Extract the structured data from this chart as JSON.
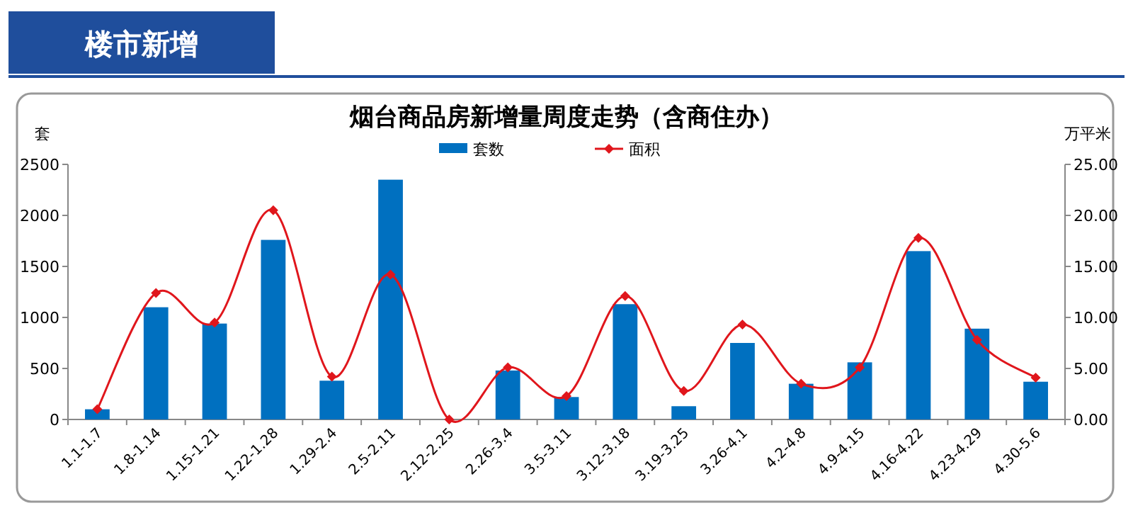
{
  "chart_data": {
    "type": "bar",
    "title": "烟台商品房新增量周度走势（含商住办）",
    "ylabel": "套",
    "y2label": "万平米",
    "annotations": [
      "楼市新增"
    ],
    "categories": [
      "1.1-1.7",
      "1.8-1.14",
      "1.15-1.21",
      "1.22-1.28",
      "1.29-2.4",
      "2.5-2.11",
      "2.12-2.25",
      "2.26-3.4",
      "3.5-3.11",
      "3.12-3.18",
      "3.19-3.25",
      "3.26-4.1",
      "4.2-4.8",
      "4.9-4.15",
      "4.16-4.22",
      "4.23-4.29",
      "4.30-5.6"
    ],
    "series": [
      {
        "name": "套数",
        "color": "#0070c0",
        "values": [
          100,
          1100,
          940,
          1760,
          380,
          2350,
          0,
          480,
          220,
          1130,
          130,
          750,
          350,
          560,
          1650,
          890,
          370
        ]
      },
      {
        "name": "面积",
        "type": "line",
        "axis": "y2",
        "color": "#e0161c",
        "marker": "diamond",
        "values": [
          1.0,
          12.4,
          9.5,
          20.5,
          4.2,
          14.2,
          0,
          5.1,
          2.3,
          12.1,
          2.8,
          9.3,
          3.5,
          5.1,
          17.8,
          7.8,
          4.1
        ]
      }
    ],
    "ylim": [
      0,
      2500
    ],
    "yticks": [
      0,
      500,
      1000,
      1500,
      2000,
      2500
    ],
    "y2lim": [
      0,
      25
    ],
    "y2ticks": [
      {
        "value": 0,
        "label": "0.00"
      },
      {
        "value": 5,
        "label": "5.00"
      },
      {
        "value": 10,
        "label": "10.00"
      },
      {
        "value": 15,
        "label": "15.00"
      },
      {
        "value": 20,
        "label": "20.00"
      },
      {
        "value": 25,
        "label": "25.00"
      }
    ],
    "legend": "top",
    "grid": false
  }
}
